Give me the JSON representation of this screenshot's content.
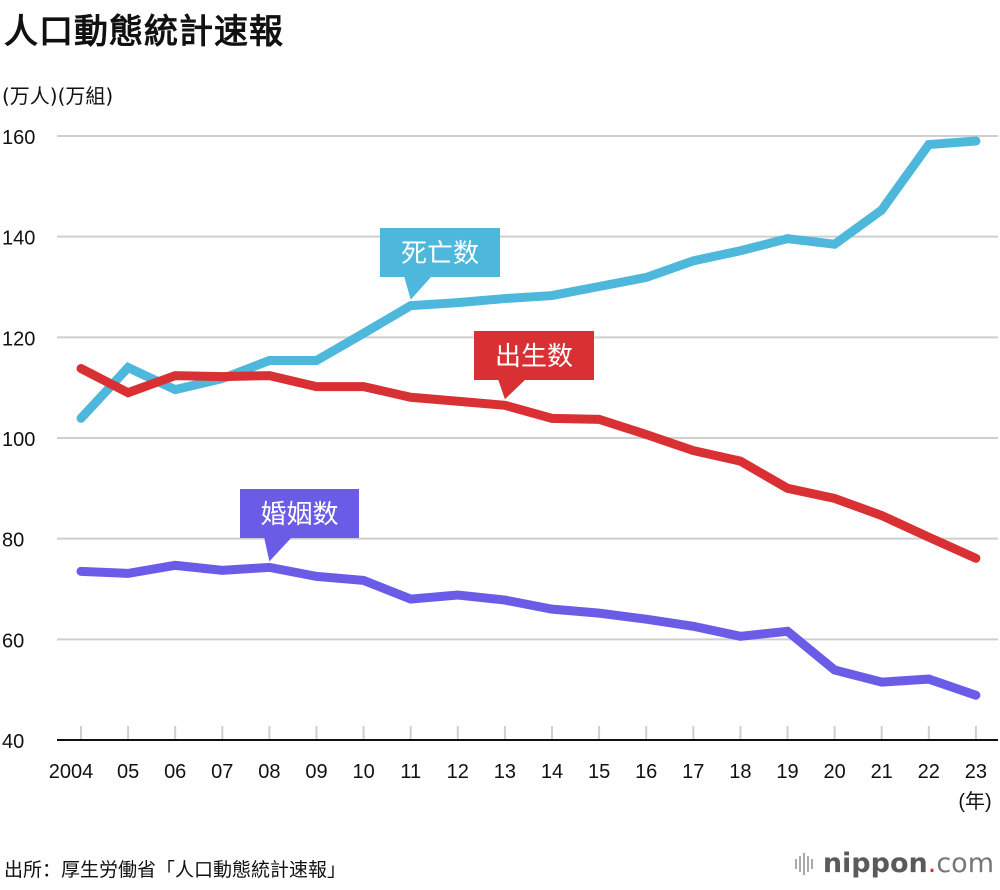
{
  "header": {
    "title": "人口動態統計速報",
    "unit_label": "(万人)(万組)"
  },
  "footer": {
    "source": "出所：厚生労働省「人口動態統計速報」",
    "brand_name": "nippon",
    "brand_dot": ".",
    "brand_tld": "com"
  },
  "chart_data": {
    "type": "line",
    "title": "人口動態統計速報",
    "ylabel": "(万人)(万組)",
    "xlabel": "(年)",
    "ylim": [
      40,
      160
    ],
    "yticks": [
      40,
      60,
      80,
      100,
      120,
      140,
      160
    ],
    "grid": true,
    "legend": "inline callouts",
    "categories": [
      "2004",
      "05",
      "06",
      "07",
      "08",
      "09",
      "10",
      "11",
      "12",
      "13",
      "14",
      "15",
      "16",
      "17",
      "18",
      "19",
      "20",
      "21",
      "22",
      "23"
    ],
    "series": [
      {
        "name": "死亡数",
        "color": "#4db8dc",
        "label_anchor_index": 7,
        "values": [
          103.9,
          114.0,
          109.6,
          111.8,
          115.4,
          115.4,
          120.8,
          126.3,
          126.9,
          127.7,
          128.3,
          130.1,
          131.9,
          135.2,
          137.2,
          139.6,
          138.5,
          145.3,
          158.3,
          159.0
        ]
      },
      {
        "name": "出生数",
        "color": "#d93033",
        "label_anchor_index": 9,
        "values": [
          113.8,
          109.0,
          112.4,
          112.2,
          112.4,
          110.2,
          110.2,
          108.1,
          107.3,
          106.5,
          103.9,
          103.7,
          100.7,
          97.5,
          95.4,
          90.0,
          88.0,
          84.6,
          80.3,
          76.1
        ]
      },
      {
        "name": "婚姻数",
        "color": "#6b5ce7",
        "label_anchor_index": 4,
        "values": [
          73.5,
          73.1,
          74.7,
          73.7,
          74.3,
          72.5,
          71.7,
          68.0,
          68.8,
          67.8,
          66.0,
          65.2,
          64.0,
          62.6,
          60.6,
          61.6,
          53.9,
          51.5,
          52.1,
          48.9
        ]
      }
    ]
  }
}
